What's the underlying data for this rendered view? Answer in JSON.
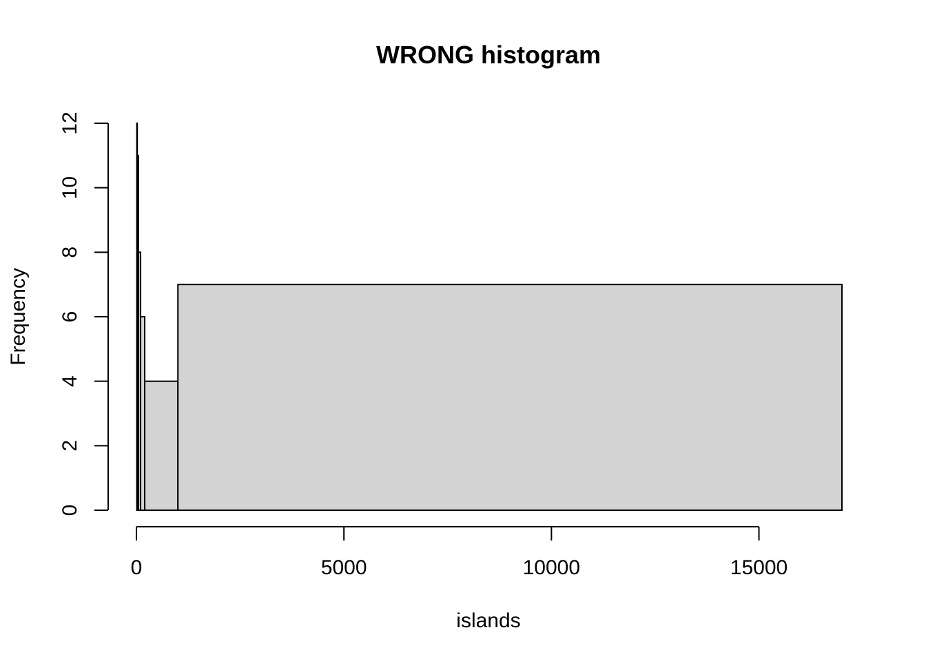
{
  "chart_data": {
    "type": "bar",
    "title": "WRONG histogram",
    "xlabel": "islands",
    "ylabel": "Frequency",
    "xlim": [
      0,
      17000
    ],
    "ylim": [
      0,
      12
    ],
    "x_ticks": [
      0,
      5000,
      10000,
      15000
    ],
    "x_tick_labels": [
      "0",
      "5000",
      "10000",
      "15000"
    ],
    "y_ticks": [
      0,
      2,
      4,
      6,
      8,
      10,
      12
    ],
    "y_tick_labels": [
      "0",
      "2",
      "4",
      "6",
      "8",
      "10",
      "12"
    ],
    "bins": [
      {
        "start": 10,
        "end": 20,
        "count": 12
      },
      {
        "start": 20,
        "end": 50,
        "count": 11
      },
      {
        "start": 50,
        "end": 100,
        "count": 8
      },
      {
        "start": 100,
        "end": 200,
        "count": 6
      },
      {
        "start": 200,
        "end": 1000,
        "count": 4
      },
      {
        "start": 1000,
        "end": 17000,
        "count": 7
      }
    ],
    "bar_fill": "#d3d3d3",
    "bar_stroke": "#000000",
    "grid": false
  }
}
